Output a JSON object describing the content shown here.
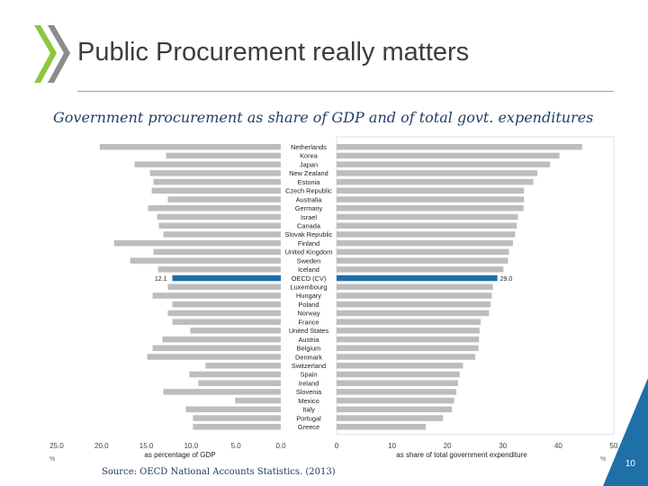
{
  "header": {
    "title": "Public Procurement really matters",
    "subtitle": "Government procurement as share of GDP and of total govt. expenditures"
  },
  "footer": {
    "source": "Source: OECD National Accounts Statistics. (2013)",
    "page_number": "10"
  },
  "colors": {
    "bar": "#bdbdbd",
    "highlight": "#1f6fa8",
    "title": "#3d3d3d",
    "subtitle": "#1f3f66",
    "accent_logo": "#8dc63f",
    "corner": "#1f6fa8"
  },
  "chart_data": {
    "type": "bar",
    "orientation": "horizontal",
    "categories": [
      "Netherlands",
      "Korea",
      "Japan",
      "New Zealand",
      "Estonia",
      "Czech Republic",
      "Australia",
      "Germany",
      "Israel",
      "Canada",
      "Slovak Republic",
      "Finland",
      "United Kingdom",
      "Sweden",
      "Iceland",
      "OECD (CV)",
      "Luxembourg",
      "Hungary",
      "Poland",
      "Norway",
      "France",
      "United States",
      "Austria",
      "Belgium",
      "Denmark",
      "Switzerland",
      "Spain",
      "Ireland",
      "Slovenia",
      "Mexico",
      "Italy",
      "Portugal",
      "Greece"
    ],
    "highlight_category": "OECD (CV)",
    "series": [
      {
        "name": "as percentage of GDP",
        "values": [
          20.2,
          12.8,
          16.3,
          14.6,
          14.2,
          14.4,
          12.6,
          14.8,
          13.8,
          13.6,
          13.1,
          18.6,
          14.2,
          16.8,
          13.7,
          12.1,
          12.6,
          14.3,
          12.1,
          12.6,
          12.1,
          10.1,
          13.2,
          14.3,
          14.9,
          8.4,
          10.2,
          9.2,
          13.1,
          5.1,
          10.6,
          9.8,
          9.8
        ],
        "axis_ticks": [
          "25.0",
          "20.0",
          "15.0",
          "10.0",
          "5.0",
          "0.0"
        ],
        "xlim": [
          25,
          0
        ],
        "unit": "%",
        "value_label": "12.1"
      },
      {
        "name": "as share of total government expenditure",
        "values": [
          44.3,
          40.2,
          38.5,
          36.2,
          35.5,
          33.8,
          33.8,
          33.7,
          32.7,
          32.5,
          32.2,
          31.8,
          31.1,
          30.9,
          30.1,
          29.0,
          28.2,
          28.0,
          27.8,
          27.5,
          26.0,
          25.8,
          25.7,
          25.6,
          25.0,
          22.8,
          22.2,
          21.9,
          21.6,
          21.2,
          20.8,
          19.2,
          16.1
        ],
        "axis_ticks": [
          "0",
          "10",
          "20",
          "30",
          "40",
          "50"
        ],
        "xlim": [
          0,
          50
        ],
        "unit": "%",
        "value_label": "29.0"
      }
    ]
  }
}
